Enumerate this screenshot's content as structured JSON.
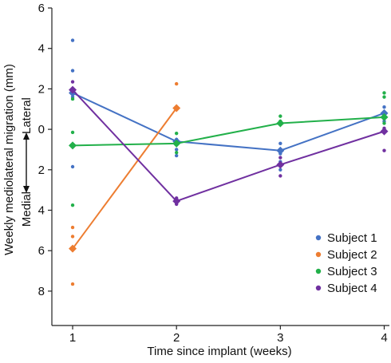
{
  "chart_data": {
    "type": "line",
    "xlabel": "Time since implant (weeks)",
    "ylabel": "Weekly mediolateral migration (mm)",
    "direction_labels": {
      "lateral": "Lateral",
      "medial": "Medial"
    },
    "x_ticks": [
      1,
      2,
      3,
      4
    ],
    "y_ticks": [
      6,
      4,
      2,
      0,
      -2,
      -4,
      -6,
      -8
    ],
    "y_tick_labels": [
      "6",
      "4",
      "2",
      "0",
      "2",
      "4",
      "6",
      "8"
    ],
    "xlim": [
      0.8,
      4.05
    ],
    "ylim": [
      -9.7,
      6
    ],
    "grid": false,
    "legend_position": "bottom-right",
    "series": [
      {
        "name": "Subject 1",
        "color": "#4472C4",
        "x": [
          1,
          2,
          3,
          4
        ],
        "mean": [
          1.8,
          -0.6,
          -1.05,
          0.8
        ],
        "points": [
          [
            1,
            4.4
          ],
          [
            1,
            2.9
          ],
          [
            1,
            1.95
          ],
          [
            1,
            1.6
          ],
          [
            1,
            -1.85
          ],
          [
            2,
            -0.5
          ],
          [
            2,
            -1.0
          ],
          [
            2,
            -1.3
          ],
          [
            3,
            -0.7
          ],
          [
            3,
            -1.2
          ],
          [
            3,
            -1.6
          ],
          [
            3,
            -2.0
          ],
          [
            4,
            1.1
          ],
          [
            4,
            0.7
          ],
          [
            4,
            0.4
          ]
        ]
      },
      {
        "name": "Subject 2",
        "color": "#ED7D31",
        "x": [
          1,
          2
        ],
        "mean": [
          -5.9,
          1.05
        ],
        "points": [
          [
            1,
            -4.85
          ],
          [
            1,
            -5.3
          ],
          [
            1,
            -7.65
          ],
          [
            2,
            2.25
          ],
          [
            2,
            1.05
          ]
        ]
      },
      {
        "name": "Subject 3",
        "color": "#22B04A",
        "x": [
          1,
          2,
          3,
          4
        ],
        "mean": [
          -0.8,
          -0.7,
          0.3,
          0.6
        ],
        "points": [
          [
            1,
            1.5
          ],
          [
            1,
            1.75
          ],
          [
            1,
            -0.15
          ],
          [
            1,
            -3.75
          ],
          [
            2,
            -0.2
          ],
          [
            2,
            -0.55
          ],
          [
            2,
            -1.15
          ],
          [
            3,
            0.65
          ],
          [
            3,
            0.4
          ],
          [
            4,
            1.8
          ],
          [
            4,
            1.6
          ],
          [
            4,
            0.3
          ]
        ]
      },
      {
        "name": "Subject 4",
        "color": "#7030A0",
        "x": [
          1,
          2,
          3,
          4
        ],
        "mean": [
          1.95,
          -3.55,
          -1.75,
          -0.1
        ],
        "points": [
          [
            1,
            2.35
          ],
          [
            1,
            1.75
          ],
          [
            2,
            -3.4
          ],
          [
            2,
            -3.7
          ],
          [
            3,
            -1.4
          ],
          [
            3,
            -2.3
          ],
          [
            4,
            0.05
          ],
          [
            4,
            -1.05
          ]
        ]
      }
    ]
  }
}
